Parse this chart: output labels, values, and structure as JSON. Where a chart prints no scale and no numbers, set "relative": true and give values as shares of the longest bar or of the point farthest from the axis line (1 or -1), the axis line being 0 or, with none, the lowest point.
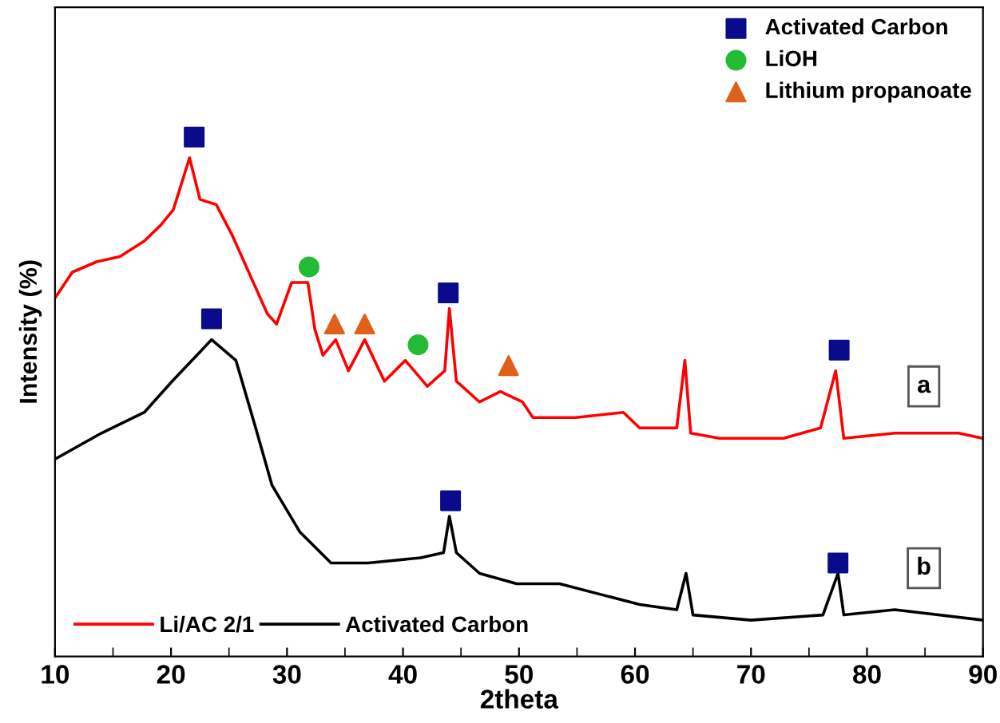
{
  "chart_data": {
    "type": "line",
    "xlabel": "2theta",
    "ylabel": "Intensity (%)",
    "relative": true,
    "xlim": [
      10,
      90
    ],
    "xticks": [
      10,
      20,
      30,
      40,
      50,
      60,
      70,
      80,
      90
    ],
    "tick_labels": "x",
    "grid": false,
    "legend": "top right",
    "series": [
      {
        "name": "Li/AC 2/1",
        "color": "#ff0000",
        "x": [
          10,
          11.5,
          13.6,
          15.6,
          17.7,
          19.1,
          20.2,
          21.6,
          22.5,
          23.9,
          25.3,
          26.7,
          28.3,
          29.1,
          30.4,
          31.8,
          32.4,
          33.1,
          34.2,
          35.3,
          36.7,
          38.4,
          40.2,
          42.1,
          43.6,
          44.0,
          44.6,
          46.6,
          48.4,
          50.3,
          51.2,
          54.9,
          59.0,
          60.4,
          63.6,
          64.3,
          64.8,
          67.3,
          72.8,
          76.0,
          77.3,
          78.0,
          82.4,
          87.9,
          90
        ],
        "values": [
          0.69,
          0.74,
          0.76,
          0.77,
          0.8,
          0.83,
          0.86,
          0.96,
          0.88,
          0.87,
          0.81,
          0.74,
          0.66,
          0.64,
          0.72,
          0.72,
          0.63,
          0.58,
          0.61,
          0.55,
          0.61,
          0.53,
          0.57,
          0.52,
          0.55,
          0.67,
          0.53,
          0.49,
          0.51,
          0.49,
          0.46,
          0.46,
          0.47,
          0.44,
          0.44,
          0.57,
          0.43,
          0.42,
          0.42,
          0.44,
          0.55,
          0.42,
          0.43,
          0.43,
          0.42
        ]
      },
      {
        "name": "Activated Carbon",
        "color": "#000000",
        "x": [
          10,
          14.0,
          17.7,
          20.1,
          23.5,
          25.6,
          27.3,
          28.7,
          31.1,
          33.8,
          37.0,
          41.5,
          43.5,
          44.0,
          44.6,
          46.6,
          49.8,
          53.5,
          60.4,
          63.6,
          64.4,
          65.0,
          70.0,
          76.2,
          77.5,
          78.0,
          82.4,
          90
        ],
        "values": [
          0.38,
          0.43,
          0.47,
          0.53,
          0.61,
          0.57,
          0.44,
          0.33,
          0.24,
          0.18,
          0.18,
          0.19,
          0.2,
          0.27,
          0.2,
          0.16,
          0.14,
          0.14,
          0.1,
          0.09,
          0.16,
          0.08,
          0.07,
          0.08,
          0.16,
          0.08,
          0.09,
          0.07
        ]
      },
      {
        "name": "Activated Carbon",
        "type": "scatter",
        "marker": "square",
        "color": "#0a0a8c",
        "x": [
          22.0,
          43.9,
          77.6,
          23.5,
          44.1,
          77.5
        ],
        "values": [
          1.0,
          0.7,
          0.59,
          0.65,
          0.3,
          0.18
        ]
      },
      {
        "name": "LiOH",
        "type": "scatter",
        "marker": "circle",
        "color": "#22bb33",
        "x": [
          31.9,
          41.3
        ],
        "values": [
          0.75,
          0.6
        ]
      },
      {
        "name": "Lithium propanoate",
        "type": "scatter",
        "marker": "triangle",
        "color": "#e0601a",
        "x": [
          34.1,
          36.7,
          49.1
        ],
        "values": [
          0.64,
          0.64,
          0.56
        ]
      }
    ],
    "annotations": [
      {
        "text": "a",
        "x": 84.9,
        "y": 0.52
      },
      {
        "text": "b",
        "x": 84.9,
        "y": 0.17
      }
    ]
  }
}
